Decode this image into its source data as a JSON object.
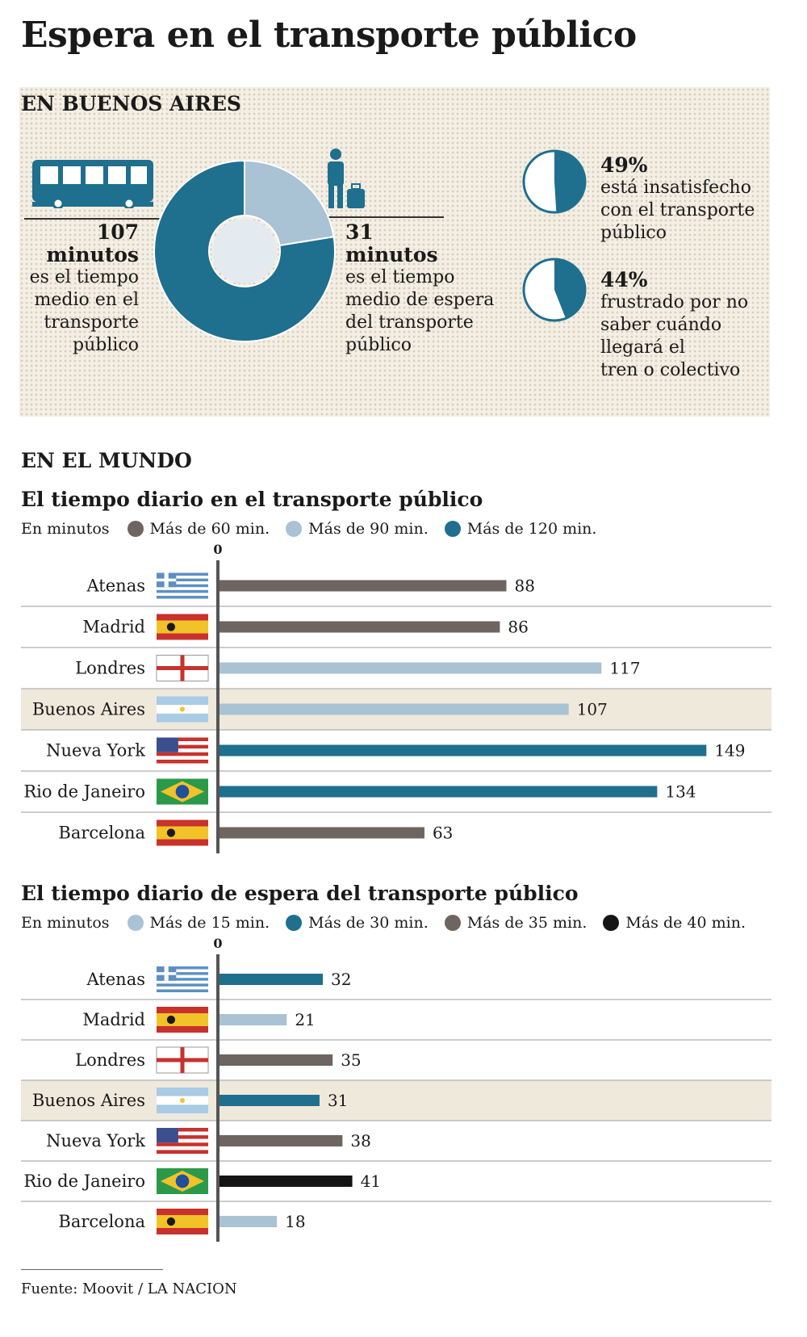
{
  "title": "Espera en el transporte público",
  "buenos_aires": {
    "heading": "EN BUENOS AIRES",
    "travel": {
      "value": "107",
      "unit": "minutos",
      "text": [
        "es el tiempo",
        "medio en el",
        "transporte",
        "público"
      ]
    },
    "wait": {
      "value": "31",
      "unit": "minutos",
      "text": [
        "es el tiempo",
        "medio de espera",
        "del transporte",
        "público"
      ]
    },
    "donut": {
      "travel_minutes": 107,
      "wait_minutes": 31
    },
    "stats": [
      {
        "percent": "49%",
        "fraction": 0.49,
        "text": [
          "está insatisfecho",
          "con el transporte",
          "público"
        ]
      },
      {
        "percent": "44%",
        "fraction": 0.44,
        "text": [
          "frustrado por no",
          "saber cuándo",
          "llegará el",
          "tren o colectivo"
        ]
      }
    ],
    "icons": [
      "bus-icon",
      "waiting-person-icon"
    ]
  },
  "world_heading": "EN EL MUNDO",
  "colors": {
    "gray": "#6e6460",
    "light": "#a9c2d4",
    "blue": "#1f6f8e",
    "black": "#141414"
  },
  "chart_data": [
    {
      "type": "bar",
      "orientation": "horizontal",
      "title": "El tiempo diario en el transporte público",
      "unit_label": "En minutos",
      "axis_zero_label": "0",
      "legend": [
        {
          "label": "Más de 60 min.",
          "color": "#6e6460"
        },
        {
          "label": "Más de 90 min.",
          "color": "#a9c2d4"
        },
        {
          "label": "Más de 120 min.",
          "color": "#1f6f8e"
        }
      ],
      "categories": [
        "Atenas",
        "Madrid",
        "Londres",
        "Buenos Aires",
        "Nueva York",
        "Rio de Janeiro",
        "Barcelona"
      ],
      "flags": [
        "greece-flag-icon",
        "spain-flag-icon",
        "england-flag-icon",
        "argentina-flag-icon",
        "usa-flag-icon",
        "brazil-flag-icon",
        "spain-flag-icon"
      ],
      "values": [
        88,
        86,
        117,
        107,
        149,
        134,
        63
      ],
      "bar_colors": [
        "#6e6460",
        "#6e6460",
        "#a9c2d4",
        "#a9c2d4",
        "#1f6f8e",
        "#1f6f8e",
        "#6e6460"
      ],
      "xlim": [
        0,
        160
      ]
    },
    {
      "type": "bar",
      "orientation": "horizontal",
      "title": "El tiempo diario de espera del transporte público",
      "unit_label": "En minutos",
      "axis_zero_label": "0",
      "legend": [
        {
          "label": "Más de 15 min.",
          "color": "#a9c2d4"
        },
        {
          "label": "Más de 30 min.",
          "color": "#1f6f8e"
        },
        {
          "label": "Más de 35 min.",
          "color": "#6e6460"
        },
        {
          "label": "Más de 40 min.",
          "color": "#141414"
        }
      ],
      "categories": [
        "Atenas",
        "Madrid",
        "Londres",
        "Buenos Aires",
        "Nueva York",
        "Rio de Janeiro",
        "Barcelona"
      ],
      "flags": [
        "greece-flag-icon",
        "spain-flag-icon",
        "england-flag-icon",
        "argentina-flag-icon",
        "usa-flag-icon",
        "brazil-flag-icon",
        "spain-flag-icon"
      ],
      "values": [
        32,
        21,
        35,
        31,
        38,
        41,
        18
      ],
      "bar_colors": [
        "#1f6f8e",
        "#a9c2d4",
        "#6e6460",
        "#1f6f8e",
        "#6e6460",
        "#141414",
        "#a9c2d4"
      ],
      "xlim": [
        0,
        160
      ]
    }
  ],
  "source": "Fuente: Moovit / LA NACION"
}
